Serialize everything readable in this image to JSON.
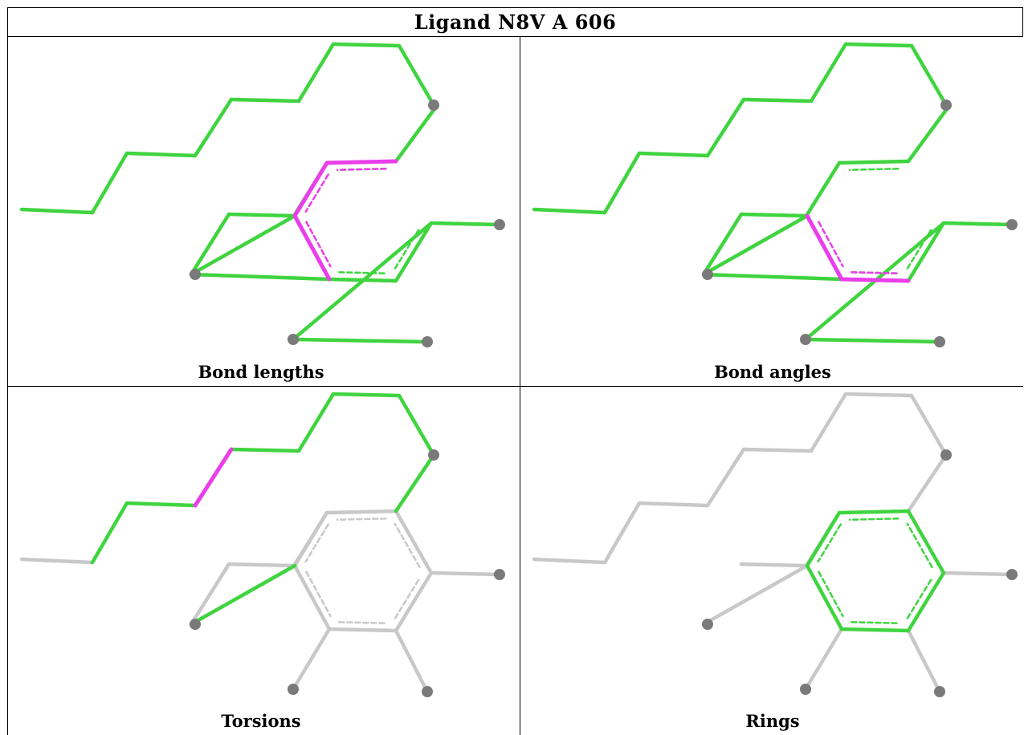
{
  "title": "Ligand N8V A 606",
  "colors": {
    "outlier": "#e93ee9",
    "ok": "#3fd43f",
    "neutral": "#c8c8c8",
    "atom": "#7a7a7a"
  },
  "panels": [
    {
      "caption": "Bond lengths",
      "segments": {
        "ok": [
          [
            0,
            1
          ],
          [
            1,
            2
          ],
          [
            2,
            3
          ],
          [
            3,
            4
          ],
          [
            4,
            5
          ],
          [
            5,
            6
          ],
          [
            6,
            7
          ],
          [
            7,
            8
          ],
          [
            8,
            9
          ],
          [
            9,
            10
          ],
          [
            10,
            11
          ],
          [
            11,
            12
          ],
          [
            12,
            13
          ],
          [
            13,
            14
          ],
          [
            14,
            15
          ],
          [
            14,
            16
          ],
          [
            16,
            17
          ],
          [
            17,
            18
          ],
          [
            18,
            19
          ],
          [
            19,
            20
          ],
          [
            18,
            21
          ]
        ],
        "outlier": [
          [
            10,
            11
          ],
          [
            11,
            15
          ],
          [
            15,
            16
          ]
        ],
        "neutral": []
      }
    },
    {
      "caption": "Bond angles",
      "segments": {
        "ok": [
          [
            0,
            1
          ],
          [
            1,
            2
          ],
          [
            2,
            3
          ],
          [
            3,
            4
          ],
          [
            4,
            5
          ],
          [
            5,
            6
          ],
          [
            6,
            7
          ],
          [
            7,
            8
          ],
          [
            8,
            9
          ],
          [
            9,
            10
          ],
          [
            10,
            11
          ],
          [
            11,
            12
          ],
          [
            12,
            13
          ],
          [
            13,
            14
          ],
          [
            14,
            15
          ],
          [
            14,
            16
          ],
          [
            16,
            17
          ],
          [
            17,
            18
          ],
          [
            18,
            19
          ],
          [
            19,
            20
          ],
          [
            18,
            21
          ]
        ],
        "outlier": [
          [
            15,
            16
          ],
          [
            16,
            17
          ]
        ],
        "neutral": []
      }
    },
    {
      "caption": "Torsions",
      "segments": {
        "ok": [
          [
            1,
            2
          ],
          [
            2,
            3
          ],
          [
            4,
            5
          ],
          [
            5,
            6
          ],
          [
            6,
            7
          ],
          [
            7,
            8
          ],
          [
            8,
            9
          ],
          [
            8,
            10
          ],
          [
            15,
            14
          ]
        ],
        "outlier": [
          [
            3,
            4
          ]
        ],
        "neutral": [
          [
            0,
            1
          ],
          [
            10,
            11
          ],
          [
            11,
            12
          ],
          [
            12,
            13
          ],
          [
            13,
            14
          ],
          [
            11,
            15
          ],
          [
            15,
            16
          ],
          [
            16,
            17
          ],
          [
            17,
            18
          ],
          [
            18,
            10
          ],
          [
            16,
            19
          ],
          [
            17,
            20
          ],
          [
            18,
            21
          ],
          [
            14,
            22
          ]
        ]
      }
    },
    {
      "caption": "Rings",
      "segments": {
        "ok": [
          [
            10,
            11
          ],
          [
            11,
            15
          ],
          [
            15,
            16
          ],
          [
            16,
            17
          ],
          [
            17,
            18
          ],
          [
            18,
            10
          ]
        ],
        "outlier": [],
        "neutral": [
          [
            0,
            1
          ],
          [
            1,
            2
          ],
          [
            2,
            3
          ],
          [
            3,
            4
          ],
          [
            4,
            5
          ],
          [
            5,
            6
          ],
          [
            6,
            7
          ],
          [
            7,
            8
          ],
          [
            8,
            9
          ],
          [
            8,
            10
          ],
          [
            11,
            12
          ],
          [
            12,
            13
          ],
          [
            15,
            14
          ],
          [
            14,
            22
          ],
          [
            16,
            19
          ],
          [
            17,
            20
          ],
          [
            18,
            21
          ]
        ]
      }
    }
  ]
}
